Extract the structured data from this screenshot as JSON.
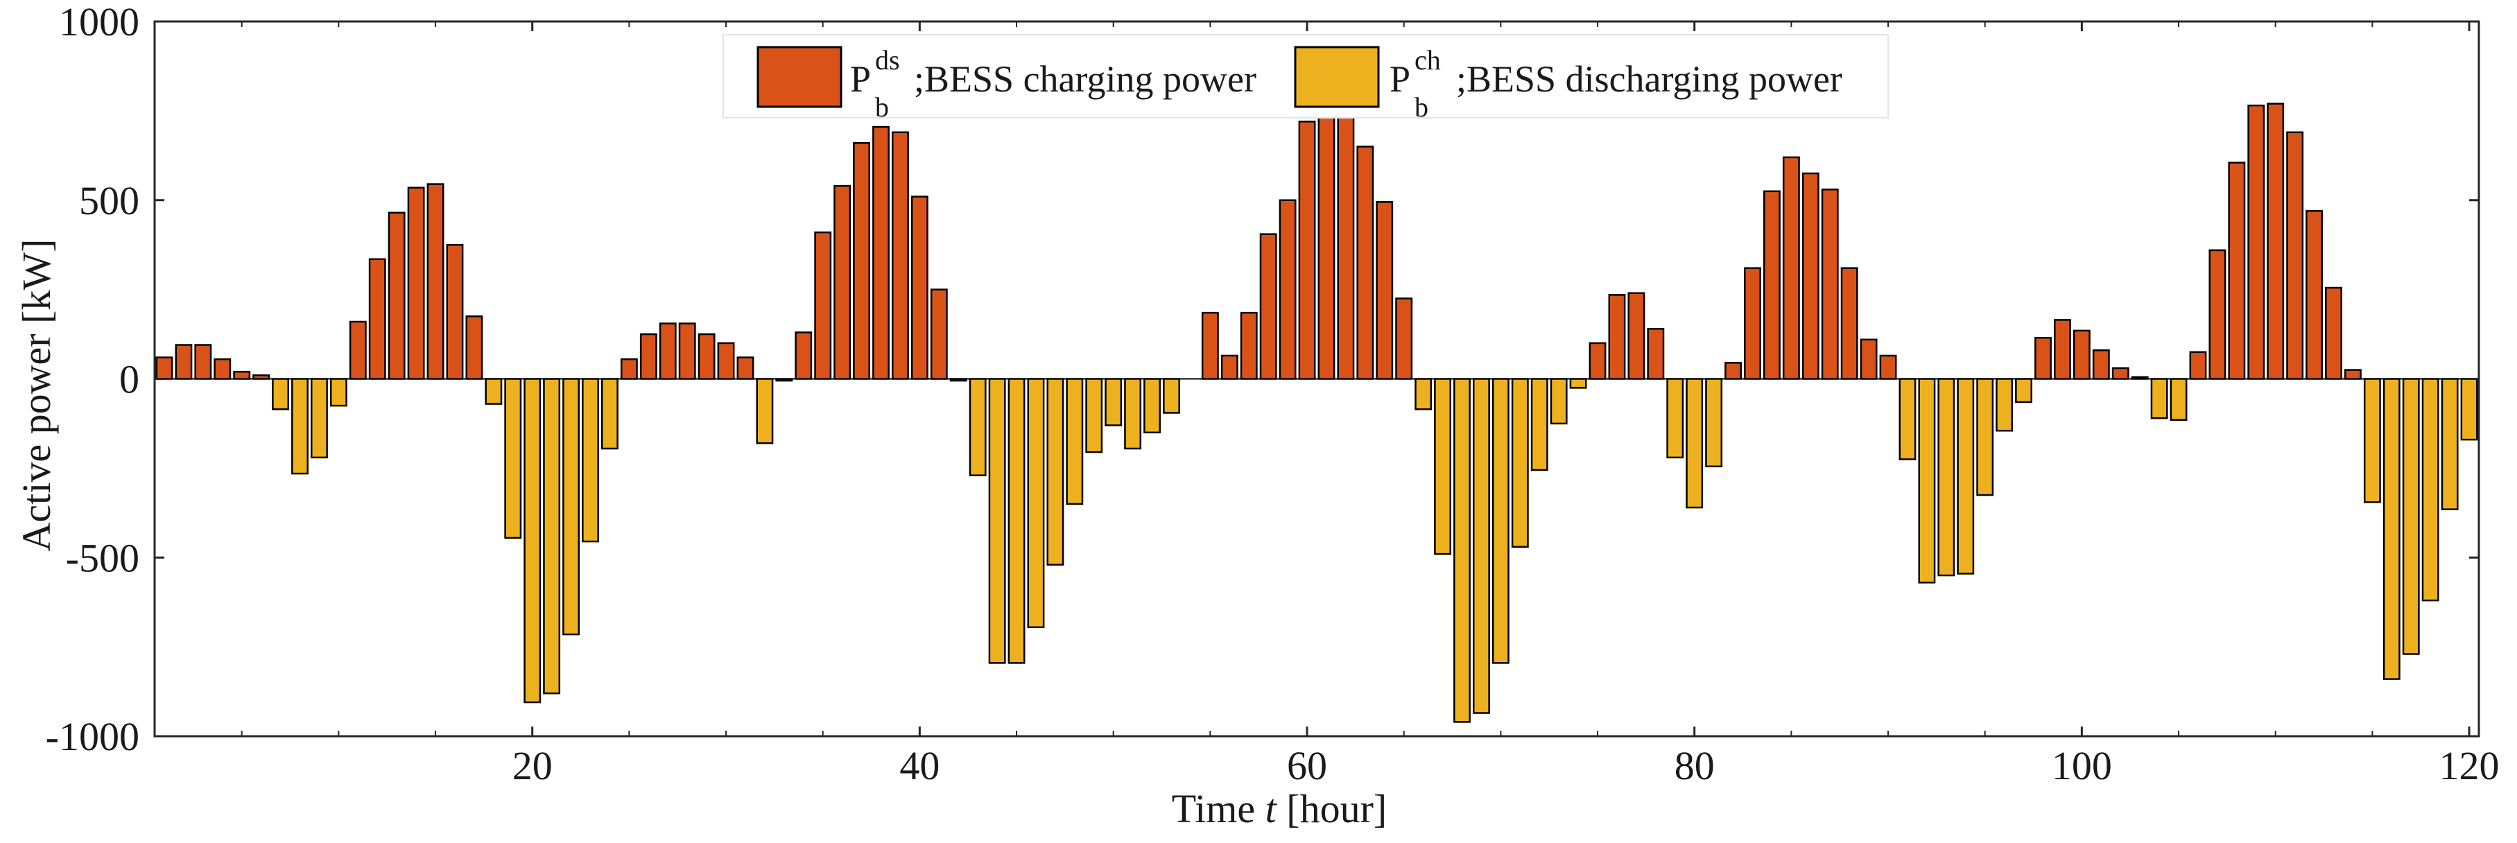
{
  "chart_data": {
    "type": "bar",
    "title": "",
    "xlabel": {
      "prefix": "Time ",
      "var": "t",
      "suffix": " [hour]"
    },
    "ylabel": "Active power  [kW]",
    "xlim": [
      0.5,
      120.5
    ],
    "ylim": [
      -1000,
      1000
    ],
    "xticks": [
      20,
      40,
      60,
      80,
      100,
      120
    ],
    "yticks": [
      -1000,
      -500,
      0,
      500,
      1000
    ],
    "x": [
      1,
      2,
      3,
      4,
      5,
      6,
      7,
      8,
      9,
      10,
      11,
      12,
      13,
      14,
      15,
      16,
      17,
      18,
      19,
      20,
      21,
      22,
      23,
      24,
      25,
      26,
      27,
      28,
      29,
      30,
      31,
      32,
      33,
      34,
      35,
      36,
      37,
      38,
      39,
      40,
      41,
      42,
      43,
      44,
      45,
      46,
      47,
      48,
      49,
      50,
      51,
      52,
      53,
      54,
      55,
      56,
      57,
      58,
      59,
      60,
      61,
      62,
      63,
      64,
      65,
      66,
      67,
      68,
      69,
      70,
      71,
      72,
      73,
      74,
      75,
      76,
      77,
      78,
      79,
      80,
      81,
      82,
      83,
      84,
      85,
      86,
      87,
      88,
      89,
      90,
      91,
      92,
      93,
      94,
      95,
      96,
      97,
      98,
      99,
      100,
      101,
      102,
      103,
      104,
      105,
      106,
      107,
      108,
      109,
      110,
      111,
      112,
      113,
      114,
      115,
      116,
      117,
      118,
      119,
      120
    ],
    "values": [
      60,
      95,
      95,
      55,
      20,
      10,
      -85,
      -265,
      -220,
      -75,
      160,
      335,
      465,
      535,
      545,
      375,
      175,
      -70,
      -445,
      -905,
      -880,
      -715,
      -455,
      -195,
      55,
      125,
      155,
      155,
      125,
      100,
      60,
      -180,
      -5,
      130,
      410,
      540,
      660,
      705,
      690,
      510,
      250,
      -5,
      -270,
      -795,
      -795,
      -695,
      -520,
      -350,
      -205,
      -130,
      -195,
      -150,
      -95,
      0,
      185,
      65,
      185,
      405,
      500,
      720,
      735,
      760,
      650,
      495,
      225,
      -85,
      -490,
      -960,
      -935,
      -795,
      -470,
      -255,
      -125,
      -25,
      100,
      235,
      240,
      140,
      -220,
      -360,
      -245,
      45,
      310,
      525,
      620,
      575,
      530,
      310,
      110,
      65,
      -225,
      -570,
      -550,
      -545,
      -325,
      -145,
      -65,
      115,
      165,
      135,
      80,
      30,
      5,
      -110,
      -115,
      75,
      360,
      605,
      765,
      770,
      690,
      470,
      255,
      25,
      -345,
      -840,
      -770,
      -620,
      -365,
      -170
    ],
    "series": [
      {
        "name": "P_b^ds ;BESS charging power",
        "main": "P",
        "sub": "b",
        "sup": "ds",
        "text": ";BESS charging power",
        "color": "#D95319",
        "sign": "positive"
      },
      {
        "name": "P_b^ch ;BESS discharging power",
        "main": "P",
        "sub": "b",
        "sup": "ch",
        "text": ";BESS discharging power",
        "color": "#EDB120",
        "sign": "negative"
      }
    ],
    "grid": false,
    "legend_position": "top-center"
  }
}
